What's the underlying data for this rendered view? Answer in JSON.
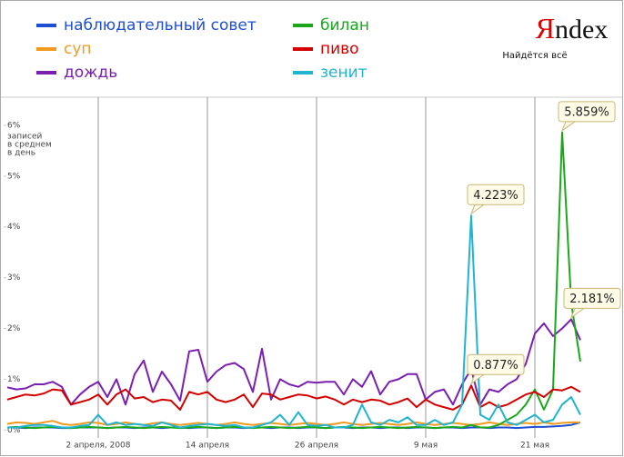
{
  "chart_data": {
    "type": "line",
    "logo": {
      "mark": "Я",
      "rest": "ndex",
      "slogan": "Найдётся всё"
    },
    "y_label": [
      "записей",
      "в среднем",
      "в день"
    ],
    "x": [
      0,
      1,
      2,
      3,
      4,
      5,
      6,
      7,
      8,
      9,
      10,
      11,
      12,
      13,
      14,
      15,
      16,
      17,
      18,
      19,
      20,
      21,
      22,
      23,
      24,
      25,
      26,
      27,
      28,
      29,
      30,
      31,
      32,
      33,
      34,
      35,
      36,
      37,
      38,
      39,
      40,
      41,
      42,
      43,
      44,
      45,
      46,
      47,
      48,
      49,
      50,
      51,
      52,
      53,
      54,
      55,
      56,
      57,
      58,
      59,
      60,
      61,
      62,
      63
    ],
    "xlim": [
      -0.3,
      63.2
    ],
    "xticks": [
      {
        "value": 10,
        "label": "2 апреля, 2008"
      },
      {
        "value": 22,
        "label": "14 апреля"
      },
      {
        "value": 34,
        "label": "26 апреля"
      },
      {
        "value": 46,
        "label": "9 мая"
      },
      {
        "value": 58,
        "label": "21 мая"
      }
    ],
    "ylim": [
      -0.12,
      6.5
    ],
    "yticks": [
      {
        "value": 0,
        "label": "0%"
      },
      {
        "value": 1,
        "label": "1%"
      },
      {
        "value": 2,
        "label": "2%"
      },
      {
        "value": 3,
        "label": "3%"
      },
      {
        "value": 4,
        "label": "4%"
      },
      {
        "value": 5,
        "label": "5%"
      },
      {
        "value": 6,
        "label": "6%"
      }
    ],
    "series": [
      {
        "name": "наблюдательный совет",
        "color": "#1f4fd1",
        "values": [
          0.05,
          0.05,
          0.04,
          0.05,
          0.05,
          0.05,
          0.04,
          0.04,
          0.05,
          0.05,
          0.05,
          0.04,
          0.05,
          0.05,
          0.04,
          0.05,
          0.05,
          0.04,
          0.05,
          0.05,
          0.04,
          0.05,
          0.05,
          0.04,
          0.05,
          0.05,
          0.04,
          0.05,
          0.05,
          0.04,
          0.05,
          0.05,
          0.04,
          0.05,
          0.05,
          0.04,
          0.05,
          0.05,
          0.04,
          0.05,
          0.05,
          0.04,
          0.05,
          0.05,
          0.04,
          0.05,
          0.05,
          0.04,
          0.05,
          0.05,
          0.04,
          0.05,
          0.05,
          0.04,
          0.05,
          0.05,
          0.04,
          0.05,
          0.06,
          0.06,
          0.07,
          0.08,
          0.1,
          0.15
        ]
      },
      {
        "name": "суп",
        "color": "#f29a1e",
        "values": [
          0.12,
          0.15,
          0.14,
          0.12,
          0.15,
          0.18,
          0.12,
          0.1,
          0.12,
          0.15,
          0.14,
          0.1,
          0.12,
          0.15,
          0.12,
          0.1,
          0.13,
          0.15,
          0.12,
          0.1,
          0.12,
          0.14,
          0.12,
          0.1,
          0.12,
          0.15,
          0.12,
          0.1,
          0.12,
          0.14,
          0.12,
          0.1,
          0.12,
          0.14,
          0.12,
          0.1,
          0.12,
          0.15,
          0.12,
          0.1,
          0.12,
          0.14,
          0.12,
          0.1,
          0.12,
          0.15,
          0.12,
          0.1,
          0.12,
          0.14,
          0.12,
          0.1,
          0.12,
          0.15,
          0.12,
          0.1,
          0.12,
          0.14,
          0.12,
          0.15,
          0.12,
          0.14,
          0.15,
          0.15
        ]
      },
      {
        "name": "дождь",
        "color": "#7a1fb0",
        "values": [
          0.84,
          0.8,
          0.82,
          0.9,
          0.9,
          0.95,
          0.85,
          0.5,
          0.7,
          0.85,
          0.95,
          0.65,
          1.0,
          0.5,
          1.1,
          1.37,
          0.75,
          1.15,
          0.9,
          0.58,
          1.55,
          1.58,
          0.95,
          1.15,
          1.28,
          1.32,
          1.2,
          0.75,
          1.6,
          0.6,
          1.0,
          0.9,
          0.85,
          0.95,
          0.93,
          0.95,
          0.95,
          0.7,
          1.0,
          0.85,
          1.16,
          0.7,
          0.95,
          1.0,
          1.1,
          1.1,
          0.6,
          0.75,
          0.8,
          0.5,
          0.9,
          1.2,
          0.5,
          0.8,
          0.75,
          0.9,
          1.0,
          1.3,
          1.9,
          2.1,
          1.85,
          2.0,
          2.181,
          1.77
        ],
        "value_labels": [
          null,
          null,
          null,
          null,
          null,
          null,
          null,
          null,
          null,
          null,
          null,
          null,
          null,
          null,
          null,
          null,
          null,
          null,
          null,
          null,
          null,
          null,
          null,
          null,
          null,
          null,
          null,
          null,
          null,
          null,
          null,
          null,
          null,
          null,
          null,
          null,
          null,
          null,
          null,
          null,
          null,
          null,
          null,
          null,
          null,
          null,
          null,
          null,
          null,
          null,
          null,
          null,
          null,
          null,
          null,
          null,
          null,
          null,
          null,
          null,
          null,
          null,
          "2.181%",
          null
        ]
      },
      {
        "name": "билан",
        "color": "#1aa81a",
        "values": [
          0.05,
          0.06,
          0.05,
          0.04,
          0.05,
          0.06,
          0.05,
          0.04,
          0.05,
          0.06,
          0.05,
          0.04,
          0.05,
          0.06,
          0.05,
          0.04,
          0.05,
          0.06,
          0.05,
          0.04,
          0.05,
          0.06,
          0.05,
          0.04,
          0.05,
          0.06,
          0.05,
          0.04,
          0.05,
          0.06,
          0.05,
          0.04,
          0.05,
          0.06,
          0.05,
          0.04,
          0.05,
          0.06,
          0.05,
          0.04,
          0.05,
          0.06,
          0.05,
          0.04,
          0.05,
          0.06,
          0.05,
          0.04,
          0.05,
          0.06,
          0.05,
          0.1,
          0.05,
          0.05,
          0.1,
          0.2,
          0.3,
          0.5,
          0.8,
          0.4,
          0.8,
          5.859,
          2.5,
          1.35
        ],
        "value_labels": [
          null,
          null,
          null,
          null,
          null,
          null,
          null,
          null,
          null,
          null,
          null,
          null,
          null,
          null,
          null,
          null,
          null,
          null,
          null,
          null,
          null,
          null,
          null,
          null,
          null,
          null,
          null,
          null,
          null,
          null,
          null,
          null,
          null,
          null,
          null,
          null,
          null,
          null,
          null,
          null,
          null,
          null,
          null,
          null,
          null,
          null,
          null,
          null,
          null,
          null,
          null,
          null,
          null,
          null,
          null,
          null,
          null,
          null,
          null,
          null,
          null,
          "5.859%",
          null,
          null
        ]
      },
      {
        "name": "пиво",
        "color": "#d40000",
        "values": [
          0.6,
          0.65,
          0.7,
          0.68,
          0.72,
          0.8,
          0.78,
          0.5,
          0.55,
          0.6,
          0.7,
          0.5,
          0.7,
          0.8,
          0.62,
          0.65,
          0.55,
          0.6,
          0.58,
          0.4,
          0.75,
          0.7,
          0.75,
          0.6,
          0.55,
          0.6,
          0.7,
          0.45,
          0.72,
          0.7,
          0.6,
          0.65,
          0.7,
          0.68,
          0.62,
          0.66,
          0.6,
          0.5,
          0.6,
          0.55,
          0.6,
          0.58,
          0.5,
          0.55,
          0.62,
          0.45,
          0.6,
          0.5,
          0.45,
          0.4,
          0.5,
          0.877,
          0.45,
          0.55,
          0.45,
          0.5,
          0.6,
          0.7,
          0.75,
          0.65,
          0.8,
          0.78,
          0.85,
          0.75
        ],
        "value_labels": [
          null,
          null,
          null,
          null,
          null,
          null,
          null,
          null,
          null,
          null,
          null,
          null,
          null,
          null,
          null,
          null,
          null,
          null,
          null,
          null,
          null,
          null,
          null,
          null,
          null,
          null,
          null,
          null,
          null,
          null,
          null,
          null,
          null,
          null,
          null,
          null,
          null,
          null,
          null,
          null,
          null,
          null,
          null,
          null,
          null,
          null,
          null,
          null,
          null,
          null,
          null,
          "0.877%",
          null,
          null,
          null,
          null,
          null,
          null,
          null,
          null,
          null,
          null,
          null,
          null
        ]
      },
      {
        "name": "зенит",
        "color": "#20b4d0",
        "values": [
          0.05,
          0.05,
          0.08,
          0.1,
          0.1,
          0.08,
          0.05,
          0.05,
          0.08,
          0.1,
          0.3,
          0.1,
          0.15,
          0.1,
          0.12,
          0.1,
          0.08,
          0.15,
          0.1,
          0.05,
          0.08,
          0.1,
          0.12,
          0.1,
          0.08,
          0.1,
          0.05,
          0.05,
          0.1,
          0.15,
          0.3,
          0.1,
          0.35,
          0.1,
          0.08,
          0.1,
          0.05,
          0.05,
          0.1,
          0.5,
          0.15,
          0.1,
          0.2,
          0.15,
          0.25,
          0.1,
          0.1,
          0.2,
          0.1,
          0.15,
          0.5,
          4.223,
          0.3,
          0.2,
          0.5,
          0.15,
          0.1,
          0.2,
          0.3,
          0.15,
          0.2,
          0.5,
          0.65,
          0.3
        ],
        "value_labels": [
          null,
          null,
          null,
          null,
          null,
          null,
          null,
          null,
          null,
          null,
          null,
          null,
          null,
          null,
          null,
          null,
          null,
          null,
          null,
          null,
          null,
          null,
          null,
          null,
          null,
          null,
          null,
          null,
          null,
          null,
          null,
          null,
          null,
          null,
          null,
          null,
          null,
          null,
          null,
          null,
          null,
          null,
          null,
          null,
          null,
          null,
          null,
          null,
          null,
          null,
          null,
          "4.223%",
          null,
          null,
          null,
          null,
          null,
          null,
          null,
          null,
          null,
          null,
          null,
          null
        ]
      }
    ]
  }
}
